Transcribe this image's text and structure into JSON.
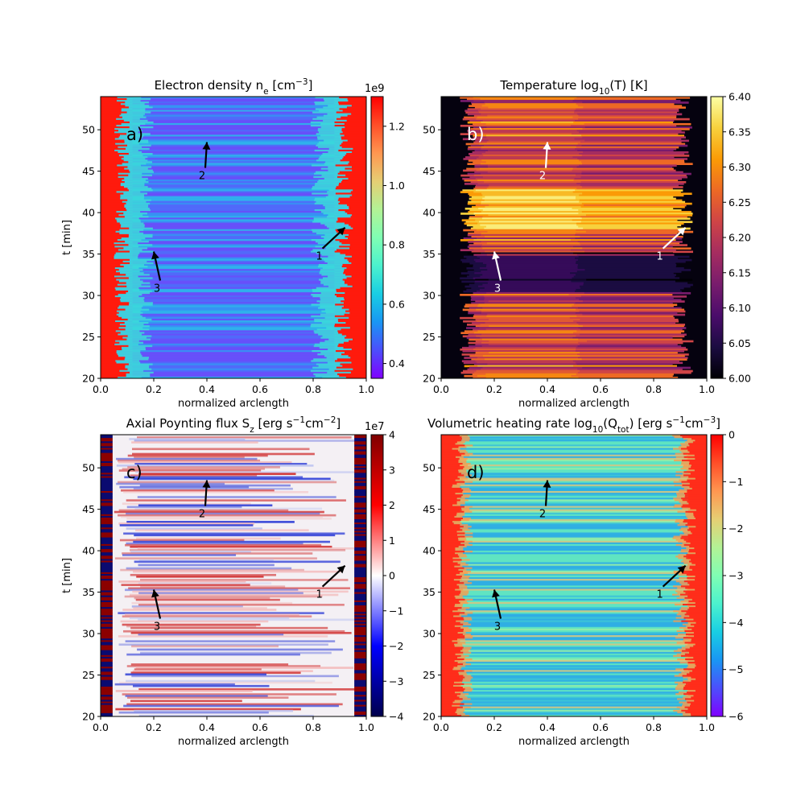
{
  "chart_data": [
    {
      "type": "heatmap",
      "letter": "a)",
      "title": "Electron density n",
      "title_sub": "e",
      "title_tail": " [cm",
      "title_sup": "−3",
      "title_end": "]",
      "xlabel": "normalized arclength",
      "ylabel": "t [min]",
      "xlim": [
        0.0,
        1.0
      ],
      "ylim": [
        20,
        54
      ],
      "xticks": [
        "0.0",
        "0.2",
        "0.4",
        "0.6",
        "0.8",
        "1.0"
      ],
      "yticks": [
        "20",
        "25",
        "30",
        "35",
        "40",
        "45",
        "50"
      ],
      "colormap": "rainbow",
      "colorbar": {
        "min": 0.35,
        "max": 1.3,
        "ticks": [
          "0.4",
          "0.6",
          "0.8",
          "1.0",
          "1.2"
        ],
        "tick_values": [
          0.4,
          0.6,
          0.8,
          1.0,
          1.2
        ],
        "exponent": "1e9"
      },
      "annotation_color": "#000000",
      "annotations": [
        {
          "label": "1",
          "x": 0.92,
          "y": 38.2
        },
        {
          "label": "2",
          "x": 0.4,
          "y": 48.5
        },
        {
          "label": "3",
          "x": 0.2,
          "y": 35.3
        }
      ]
    },
    {
      "type": "heatmap",
      "letter": "b)",
      "title": "Temperature log",
      "title_sub": "10",
      "title_tail": "(T) [K]",
      "title_sup": "",
      "title_end": "",
      "xlabel": "normalized arclength",
      "ylabel": "",
      "xlim": [
        0.0,
        1.0
      ],
      "ylim": [
        20,
        54
      ],
      "xticks": [
        "0.0",
        "0.2",
        "0.4",
        "0.6",
        "0.8",
        "1.0"
      ],
      "yticks": [
        "20",
        "25",
        "30",
        "35",
        "40",
        "45",
        "50"
      ],
      "colormap": "inferno",
      "colorbar": {
        "min": 6.0,
        "max": 6.4,
        "ticks": [
          "6.00",
          "6.05",
          "6.10",
          "6.15",
          "6.20",
          "6.25",
          "6.30",
          "6.35",
          "6.40"
        ],
        "tick_values": [
          6.0,
          6.05,
          6.1,
          6.15,
          6.2,
          6.25,
          6.3,
          6.35,
          6.4
        ],
        "exponent": ""
      },
      "annotation_color": "#ffffff",
      "annotations": [
        {
          "label": "1",
          "x": 0.92,
          "y": 38.2
        },
        {
          "label": "2",
          "x": 0.4,
          "y": 48.5
        },
        {
          "label": "3",
          "x": 0.2,
          "y": 35.3
        }
      ]
    },
    {
      "type": "heatmap",
      "letter": "c)",
      "title": "Axial Poynting flux S",
      "title_sub": "z",
      "title_tail": " [erg s",
      "title_sup": "−1",
      "title_end": "cm",
      "title_sup2": "−2",
      "title_end2": "]",
      "xlabel": "normalized arclength",
      "ylabel": "t [min]",
      "xlim": [
        0.0,
        1.0
      ],
      "ylim": [
        20,
        54
      ],
      "xticks": [
        "0.0",
        "0.2",
        "0.4",
        "0.6",
        "0.8",
        "1.0"
      ],
      "yticks": [
        "20",
        "25",
        "30",
        "35",
        "40",
        "45",
        "50"
      ],
      "colormap": "seismic",
      "colorbar": {
        "min": -4,
        "max": 4,
        "ticks": [
          "−4",
          "−3",
          "−2",
          "−1",
          "0",
          "1",
          "2",
          "3",
          "4"
        ],
        "tick_values": [
          -4,
          -3,
          -2,
          -1,
          0,
          1,
          2,
          3,
          4
        ],
        "exponent": "1e7"
      },
      "annotation_color": "#000000",
      "annotations": [
        {
          "label": "1",
          "x": 0.92,
          "y": 38.2
        },
        {
          "label": "2",
          "x": 0.4,
          "y": 48.5
        },
        {
          "label": "3",
          "x": 0.2,
          "y": 35.3
        }
      ]
    },
    {
      "type": "heatmap",
      "letter": "d)",
      "title": "Volumetric heating rate log",
      "title_sub": "10",
      "title_tail": "(Q",
      "title_sub2": "tot",
      "title_end": ") [erg s",
      "title_sup": "−1",
      "title_end2": "cm",
      "title_sup2": "−3",
      "title_end3": "]",
      "xlabel": "normalized arclength",
      "ylabel": "",
      "xlim": [
        0.0,
        1.0
      ],
      "ylim": [
        20,
        54
      ],
      "xticks": [
        "0.0",
        "0.2",
        "0.4",
        "0.6",
        "0.8",
        "1.0"
      ],
      "yticks": [
        "20",
        "25",
        "30",
        "35",
        "40",
        "45",
        "50"
      ],
      "colormap": "rainbow",
      "colorbar": {
        "min": -6,
        "max": 0,
        "ticks": [
          "−6",
          "−5",
          "−4",
          "−3",
          "−2",
          "−1",
          "0"
        ],
        "tick_values": [
          -6,
          -5,
          -4,
          -3,
          -2,
          -1,
          0
        ],
        "exponent": ""
      },
      "annotation_color": "#000000",
      "annotations": [
        {
          "label": "1",
          "x": 0.92,
          "y": 38.2
        },
        {
          "label": "2",
          "x": 0.4,
          "y": 48.5
        },
        {
          "label": "3",
          "x": 0.2,
          "y": 35.3
        }
      ]
    }
  ]
}
